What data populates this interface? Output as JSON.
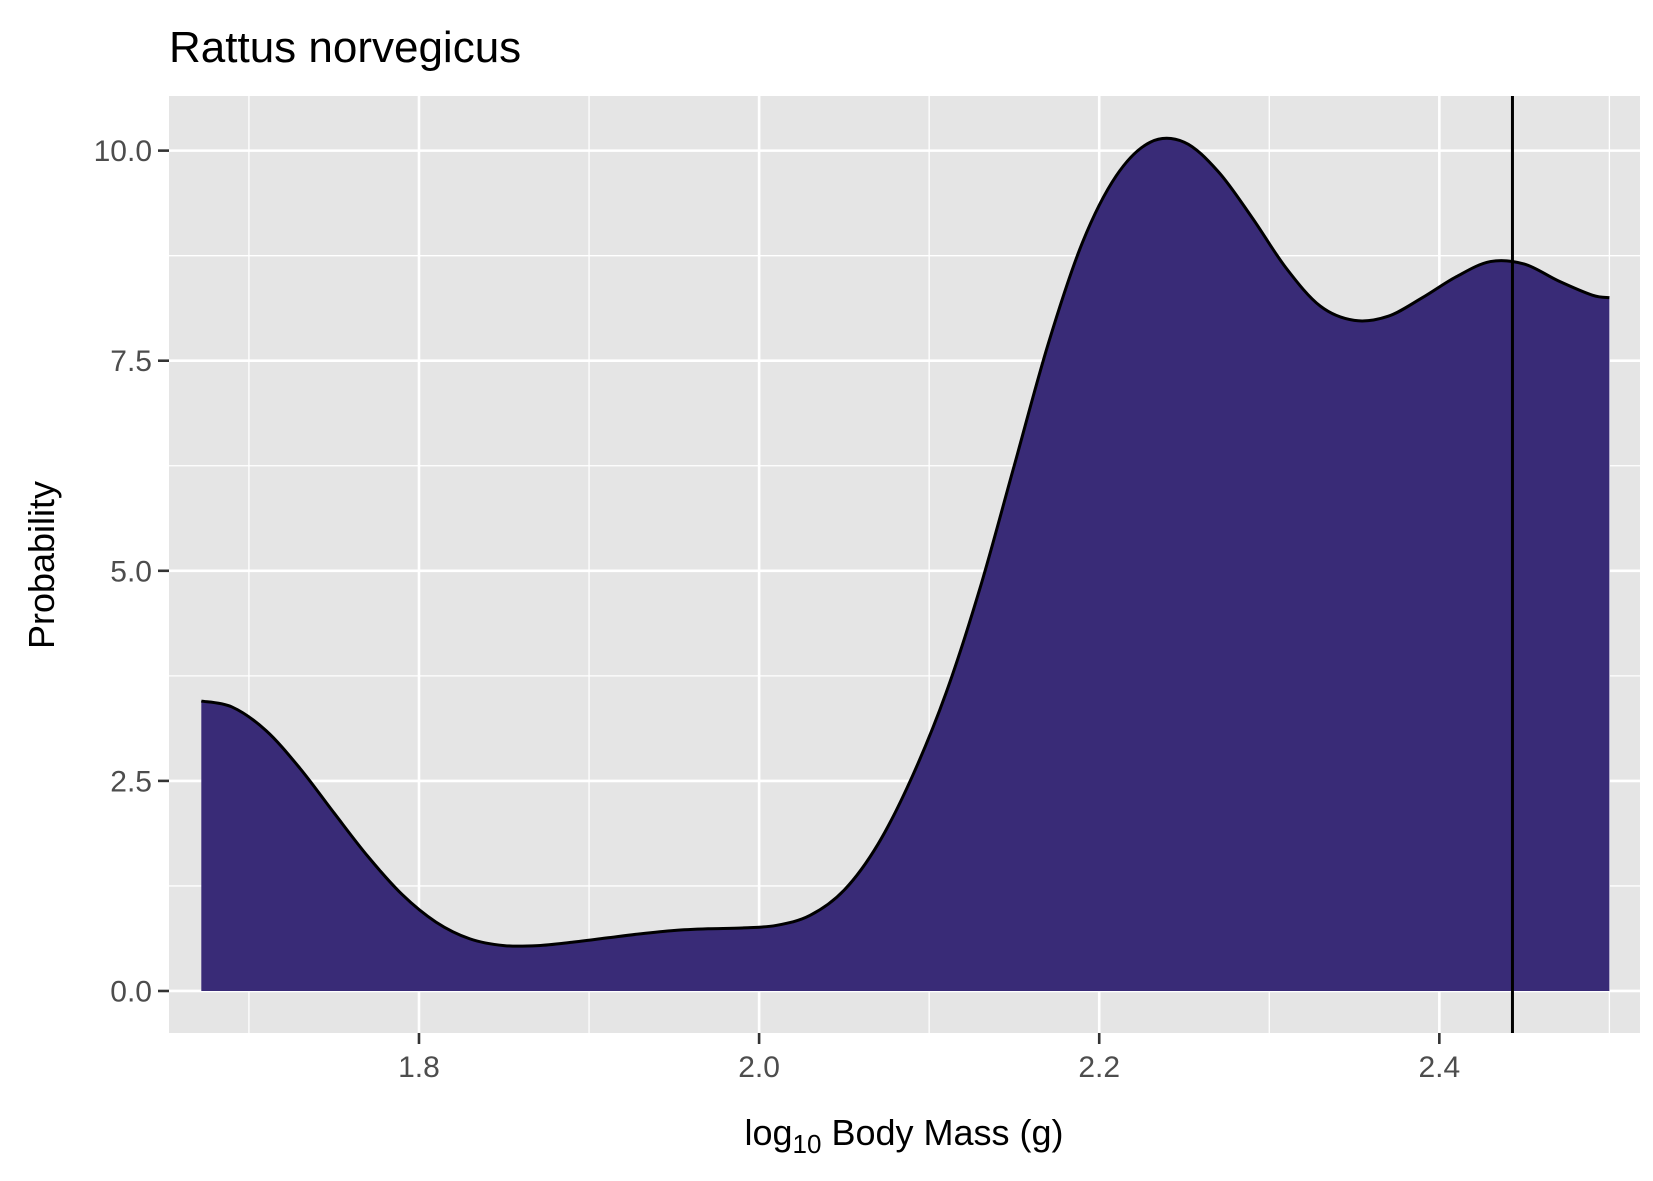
{
  "chart_data": {
    "type": "area",
    "title": "Rattus norvegicus",
    "xlabel": {
      "prefix": "log",
      "subscript": "10",
      "suffix": " Body Mass (g)"
    },
    "ylabel": "Probability",
    "xlim": [
      1.653,
      2.518
    ],
    "ylim": [
      -0.5,
      10.65
    ],
    "x_major_ticks": [
      1.8,
      2.0,
      2.2,
      2.4
    ],
    "x_tick_labels": [
      "1.8",
      "2.0",
      "2.2",
      "2.4"
    ],
    "x_minor_ticks": [
      1.7,
      1.9,
      2.1,
      2.3,
      2.5
    ],
    "y_major_ticks": [
      0,
      2.5,
      5,
      7.5,
      10
    ],
    "y_tick_labels": [
      "0.0",
      "2.5",
      "5.0",
      "7.5",
      "10.0"
    ],
    "y_minor_ticks": [
      1.25,
      3.75,
      6.25,
      8.75
    ],
    "grid": true,
    "series": [
      {
        "fill": "#392b77",
        "line_color": "#000000",
        "x": [
          1.672,
          1.69,
          1.71,
          1.73,
          1.75,
          1.77,
          1.79,
          1.81,
          1.83,
          1.85,
          1.87,
          1.89,
          1.91,
          1.93,
          1.95,
          1.97,
          1.99,
          2.01,
          2.03,
          2.05,
          2.07,
          2.09,
          2.11,
          2.13,
          2.15,
          2.17,
          2.19,
          2.21,
          2.23,
          2.25,
          2.27,
          2.29,
          2.31,
          2.33,
          2.35,
          2.37,
          2.39,
          2.41,
          2.43,
          2.45,
          2.47,
          2.49,
          2.5
        ],
        "y": [
          3.45,
          3.38,
          3.1,
          2.65,
          2.12,
          1.6,
          1.15,
          0.82,
          0.62,
          0.54,
          0.54,
          0.58,
          0.63,
          0.68,
          0.72,
          0.74,
          0.75,
          0.78,
          0.9,
          1.2,
          1.75,
          2.55,
          3.55,
          4.8,
          6.25,
          7.7,
          8.9,
          9.7,
          10.1,
          10.1,
          9.75,
          9.2,
          8.6,
          8.15,
          7.98,
          8.03,
          8.25,
          8.5,
          8.68,
          8.65,
          8.45,
          8.28,
          8.25
        ]
      }
    ],
    "vline_x": 2.443
  }
}
